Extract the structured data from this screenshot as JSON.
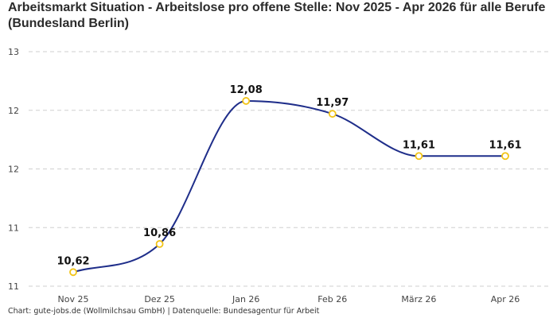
{
  "title": "Arbeitsmarkt Situation - Arbeitslose pro offene Stelle: Nov 2025 - Apr 2026 für alle Berufe (Bundesland Berlin)",
  "footer": "Chart: gute-jobs.de (Wollmilchsau GmbH) | Datenquelle: Bundesagentur für Arbeit",
  "colors": {
    "line": "#1f2e8a",
    "marker": "#f2c417",
    "grid": "#cfcfcf"
  },
  "chart_data": {
    "type": "line",
    "title": "Arbeitsmarkt Situation - Arbeitslose pro offene Stelle: Nov 2025 - Apr 2026 für alle Berufe (Bundesland Berlin)",
    "xlabel": "",
    "ylabel": "",
    "categories": [
      "Nov 25",
      "Dez 25",
      "Jan 26",
      "Feb 26",
      "März 26",
      "Apr 26"
    ],
    "values": [
      10.62,
      10.86,
      12.08,
      11.97,
      11.61,
      11.61
    ],
    "data_labels": [
      "10,62",
      "10,86",
      "12,08",
      "11,97",
      "11,61",
      "11,61"
    ],
    "yticks": [
      10.5,
      11.0,
      11.5,
      12.0,
      12.5
    ],
    "ytick_labels": [
      "11",
      "11",
      "12",
      "12",
      "13"
    ],
    "ylim": [
      10.5,
      12.5
    ],
    "grid": true,
    "legend": "none",
    "line_shape": "smooth"
  }
}
